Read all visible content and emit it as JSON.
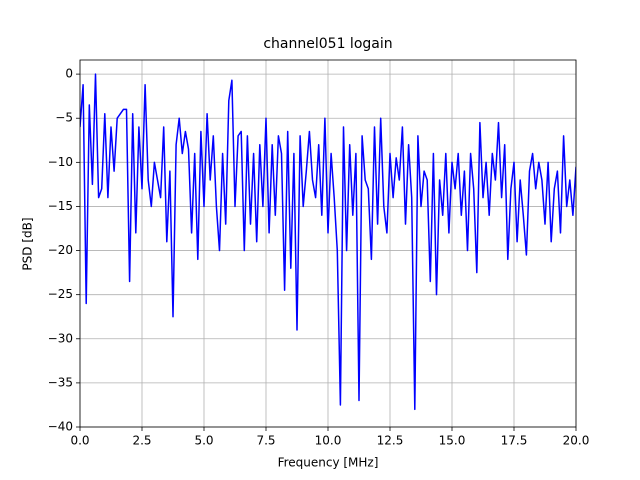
{
  "chart_data": {
    "type": "line",
    "title": "channel051 logain",
    "x_label": "Frequency [MHz]",
    "y_label": "PSD [dB]",
    "x": [
      0,
      0.125,
      0.25,
      0.375,
      0.5,
      0.625,
      0.75,
      0.875,
      1.0,
      1.125,
      1.25,
      1.375,
      1.5,
      1.625,
      1.75,
      1.875,
      2.0,
      2.125,
      2.25,
      2.375,
      2.5,
      2.625,
      2.75,
      2.875,
      3.0,
      3.125,
      3.25,
      3.375,
      3.5,
      3.625,
      3.75,
      3.875,
      4.0,
      4.125,
      4.25,
      4.375,
      4.5,
      4.625,
      4.75,
      4.875,
      5.0,
      5.125,
      5.25,
      5.375,
      5.5,
      5.625,
      5.75,
      5.875,
      6.0,
      6.125,
      6.25,
      6.375,
      6.5,
      6.625,
      6.75,
      6.875,
      7.0,
      7.125,
      7.25,
      7.375,
      7.5,
      7.625,
      7.75,
      7.875,
      8.0,
      8.125,
      8.25,
      8.375,
      8.5,
      8.625,
      8.75,
      8.875,
      9.0,
      9.125,
      9.25,
      9.375,
      9.5,
      9.625,
      9.75,
      9.875,
      10.0,
      10.125,
      10.25,
      10.375,
      10.5,
      10.625,
      10.75,
      10.875,
      11.0,
      11.125,
      11.25,
      11.375,
      11.5,
      11.625,
      11.75,
      11.875,
      12.0,
      12.125,
      12.25,
      12.375,
      12.5,
      12.625,
      12.75,
      12.875,
      13.0,
      13.125,
      13.25,
      13.375,
      13.5,
      13.625,
      13.75,
      13.875,
      14.0,
      14.125,
      14.25,
      14.375,
      14.5,
      14.625,
      14.75,
      14.875,
      15.0,
      15.125,
      15.25,
      15.375,
      15.5,
      15.625,
      15.75,
      15.875,
      16.0,
      16.125,
      16.25,
      16.375,
      16.5,
      16.625,
      16.75,
      16.875,
      17.0,
      17.125,
      17.25,
      17.375,
      17.5,
      17.625,
      17.75,
      17.875,
      18.0,
      18.125,
      18.25,
      18.375,
      18.5,
      18.625,
      18.75,
      18.875,
      19.0,
      19.125,
      19.25,
      19.375,
      19.5,
      19.625,
      19.75,
      19.875,
      20.0
    ],
    "series": [
      {
        "name": "channel051",
        "color": "#0000ff",
        "values": [
          -6,
          -1.2,
          -26,
          -3.5,
          -12.5,
          0,
          -14,
          -13,
          -4.5,
          -14,
          -6,
          -11,
          -5,
          -4.5,
          -4,
          -4,
          -23.5,
          -4.5,
          -18,
          -6,
          -13,
          -1.2,
          -12,
          -15,
          -10,
          -12,
          -14,
          -6,
          -19,
          -11,
          -27.5,
          -8,
          -5,
          -9,
          -6.5,
          -8.5,
          -18,
          -9,
          -21,
          -6.5,
          -15,
          -4.5,
          -12,
          -7,
          -15,
          -20,
          -9,
          -17,
          -3,
          -0.7,
          -15,
          -7,
          -6.5,
          -20,
          -7,
          -17,
          -9,
          -19,
          -8,
          -15,
          -5,
          -18,
          -8,
          -16,
          -7,
          -9,
          -24.5,
          -6.5,
          -22,
          -9,
          -29,
          -7,
          -15,
          -11,
          -6.5,
          -12,
          -14,
          -8,
          -16,
          -5,
          -18,
          -9,
          -14,
          -20,
          -37.5,
          -6,
          -20,
          -8,
          -16,
          -9,
          -37,
          -7,
          -12,
          -13,
          -21,
          -6,
          -17,
          -5,
          -15,
          -18,
          -9,
          -14,
          -9.5,
          -12,
          -6,
          -17,
          -8,
          -14,
          -38,
          -7,
          -15,
          -11,
          -12,
          -23.5,
          -9,
          -25,
          -12,
          -16,
          -9,
          -18,
          -10,
          -13,
          -9,
          -16,
          -11,
          -20,
          -9,
          -13,
          -22.5,
          -5.5,
          -14,
          -10,
          -16,
          -9,
          -12,
          -5.5,
          -14,
          -8,
          -21,
          -13,
          -10,
          -19,
          -12,
          -16,
          -20.5,
          -11,
          -9,
          -13,
          -10,
          -12,
          -17,
          -10,
          -19,
          -13,
          -11,
          -18,
          -7,
          -15,
          -12,
          -16,
          -10.5
        ]
      }
    ],
    "xlim": [
      0,
      20
    ],
    "ylim": [
      -40,
      1.6
    ],
    "xticks": [
      {
        "value": 0,
        "label": "0.0"
      },
      2.5,
      {
        "value": 5,
        "label": "5.0"
      },
      7.5,
      {
        "value": 10,
        "label": "10.0"
      },
      12.5,
      {
        "value": 15,
        "label": "15.0"
      },
      17.5,
      {
        "value": 20,
        "label": "20.0"
      }
    ],
    "yticks": [
      {
        "value": -40,
        "label": "−40"
      },
      {
        "value": -35,
        "label": "−35"
      },
      {
        "value": -30,
        "label": "−30"
      },
      {
        "value": -25,
        "label": "−25"
      },
      {
        "value": -20,
        "label": "−20"
      },
      {
        "value": -15,
        "label": "−15"
      },
      {
        "value": -10,
        "label": "−10"
      },
      {
        "value": -5,
        "label": "−5"
      },
      0
    ],
    "grid": true
  }
}
